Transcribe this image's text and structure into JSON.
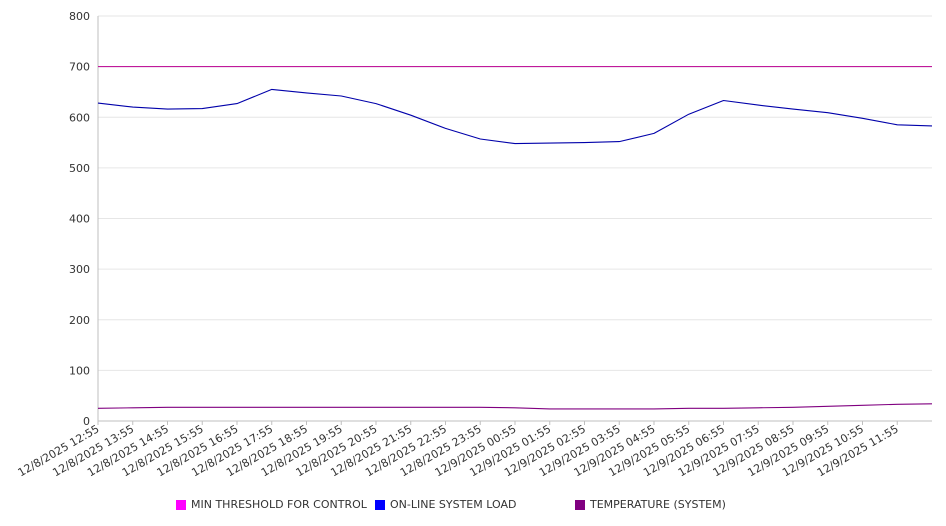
{
  "chart_data": {
    "type": "line",
    "title": "",
    "xlabel": "",
    "ylabel": "",
    "ylim": [
      0,
      800
    ],
    "y_ticks": [
      0,
      100,
      200,
      300,
      400,
      500,
      600,
      700,
      800
    ],
    "x_tick_labels": [
      "12/8/2025 12:55",
      "12/8/2025 13:55",
      "12/8/2025 14:55",
      "12/8/2025 15:55",
      "12/8/2025 16:55",
      "12/8/2025 17:55",
      "12/8/2025 18:55",
      "12/8/2025 19:55",
      "12/8/2025 20:55",
      "12/8/2025 21:55",
      "12/8/2025 22:55",
      "12/8/2025 23:55",
      "12/9/2025 00:55",
      "12/9/2025 01:55",
      "12/9/2025 02:55",
      "12/9/2025 03:55",
      "12/9/2025 04:55",
      "12/9/2025 05:55",
      "12/9/2025 06:55",
      "12/9/2025 07:55",
      "12/9/2025 08:55",
      "12/9/2025 09:55",
      "12/9/2025 10:55",
      "12/9/2025 11:55"
    ],
    "grid": true,
    "legend_position": "bottom",
    "series": [
      {
        "name": "MIN THRESHOLD FOR CONTROL",
        "color": "#c0199b",
        "legend_color": "#ff00ff",
        "values": [
          700,
          700,
          700,
          700,
          700,
          700,
          700,
          700,
          700,
          700,
          700,
          700,
          700,
          700,
          700,
          700,
          700,
          700,
          700,
          700,
          700,
          700,
          700,
          700,
          700
        ]
      },
      {
        "name": "ON-LINE SYSTEM LOAD",
        "color": "#0000aa",
        "legend_color": "#0000ff",
        "values": [
          628,
          620,
          616,
          617,
          627,
          655,
          648,
          642,
          627,
          604,
          578,
          557,
          548,
          549,
          550,
          552,
          568,
          606,
          633,
          624,
          616,
          609,
          598,
          585,
          583
        ]
      },
      {
        "name": "TEMPERATURE (SYSTEM)",
        "color": "#800080",
        "legend_color": "#800080",
        "values": [
          25,
          26,
          27,
          27,
          27,
          27,
          27,
          27,
          27,
          27,
          27,
          27,
          26,
          24,
          24,
          24,
          24,
          25,
          25,
          26,
          27,
          29,
          31,
          33,
          34
        ]
      }
    ]
  }
}
